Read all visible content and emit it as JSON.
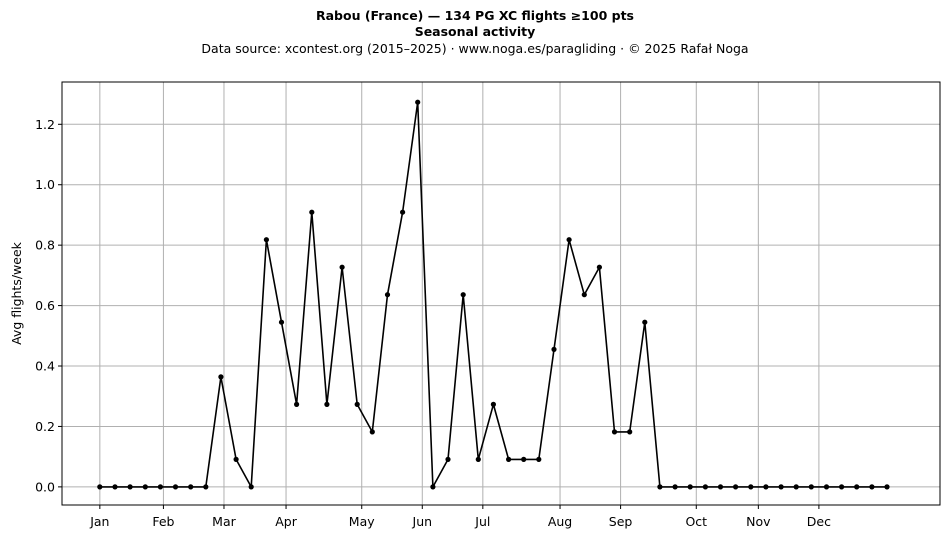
{
  "chart_data": {
    "type": "line",
    "title": "Rabou (France)  —  134 PG XC flights ≥100 pts",
    "subtitle": "Seasonal activity",
    "source": "Data source: xcontest.org (2015–2025)  ·  www.noga.es/paragliding  ·  © 2025 Rafał Noga",
    "xlabel": "",
    "ylabel": "Avg flights/week",
    "ylim": [
      -0.06,
      1.34
    ],
    "yticks": [
      0.0,
      0.2,
      0.4,
      0.6,
      0.8,
      1.0,
      1.2
    ],
    "ytick_labels": [
      "0.0",
      "0.2",
      "0.4",
      "0.6",
      "0.8",
      "1.0",
      "1.2"
    ],
    "xlim": [
      -2.5,
      55.5
    ],
    "month_ticks": [
      {
        "label": "Jan",
        "week": 0
      },
      {
        "label": "Feb",
        "week": 4.2
      },
      {
        "label": "Mar",
        "week": 8.2
      },
      {
        "label": "Apr",
        "week": 12.3
      },
      {
        "label": "May",
        "week": 17.3
      },
      {
        "label": "Jun",
        "week": 21.3
      },
      {
        "label": "Jul",
        "week": 25.3
      },
      {
        "label": "Aug",
        "week": 30.4
      },
      {
        "label": "Sep",
        "week": 34.4
      },
      {
        "label": "Oct",
        "week": 39.4
      },
      {
        "label": "Nov",
        "week": 43.5
      },
      {
        "label": "Dec",
        "week": 47.5
      }
    ],
    "grid": true,
    "color": "#000000",
    "series": [
      {
        "values": [
          0,
          0,
          0,
          0,
          0,
          0,
          0,
          0,
          0.364,
          0.091,
          0,
          0.818,
          0.545,
          0.273,
          0.909,
          0.273,
          0.727,
          0.273,
          0.182,
          0.636,
          0.909,
          1.273,
          0,
          0.091,
          0.636,
          0.091,
          0.273,
          0.091,
          0.091,
          0.091,
          0.455,
          0.818,
          0.636,
          0.727,
          0.182,
          0.182,
          0.545,
          0,
          0,
          0,
          0,
          0,
          0,
          0,
          0,
          0,
          0,
          0,
          0,
          0,
          0,
          0,
          0
        ]
      }
    ]
  }
}
